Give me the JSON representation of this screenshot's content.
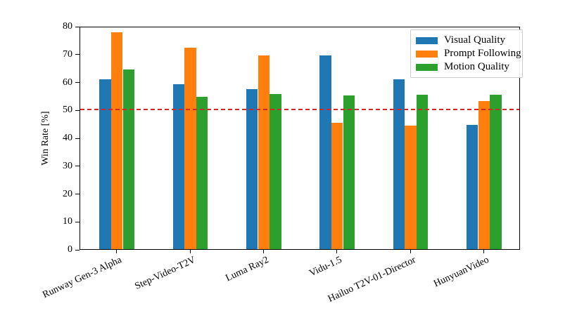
{
  "figure": {
    "background": "#ffffff",
    "axis_color": "#000000"
  },
  "chart_data": {
    "type": "bar",
    "title": "",
    "xlabel": "",
    "ylabel": "Win Rate [%]",
    "ylim": [
      0,
      80
    ],
    "yticks": [
      0,
      10,
      20,
      30,
      40,
      50,
      60,
      70,
      80
    ],
    "grid": false,
    "legend_position": "upper right",
    "categories": [
      "Runway Gen-3 Alpha",
      "Step-Video-T2V",
      "Luma Ray2",
      "Vidu-1.5",
      "Hailuo T2V-01-Director",
      "HunyuanVideo"
    ],
    "series": [
      {
        "name": "Visual Quality",
        "color": "#1f77b4",
        "values": [
          61.0,
          59.2,
          57.4,
          69.5,
          60.9,
          44.5
        ]
      },
      {
        "name": "Prompt Following",
        "color": "#ff7f0e",
        "values": [
          77.8,
          72.2,
          69.5,
          45.3,
          44.3,
          53.1
        ]
      },
      {
        "name": "Motion Quality",
        "color": "#2ca02c",
        "values": [
          64.3,
          54.7,
          55.6,
          55.1,
          55.4,
          55.4
        ]
      }
    ],
    "reference_line": {
      "value": 50,
      "color": "#d62728",
      "style": "dashed"
    }
  }
}
